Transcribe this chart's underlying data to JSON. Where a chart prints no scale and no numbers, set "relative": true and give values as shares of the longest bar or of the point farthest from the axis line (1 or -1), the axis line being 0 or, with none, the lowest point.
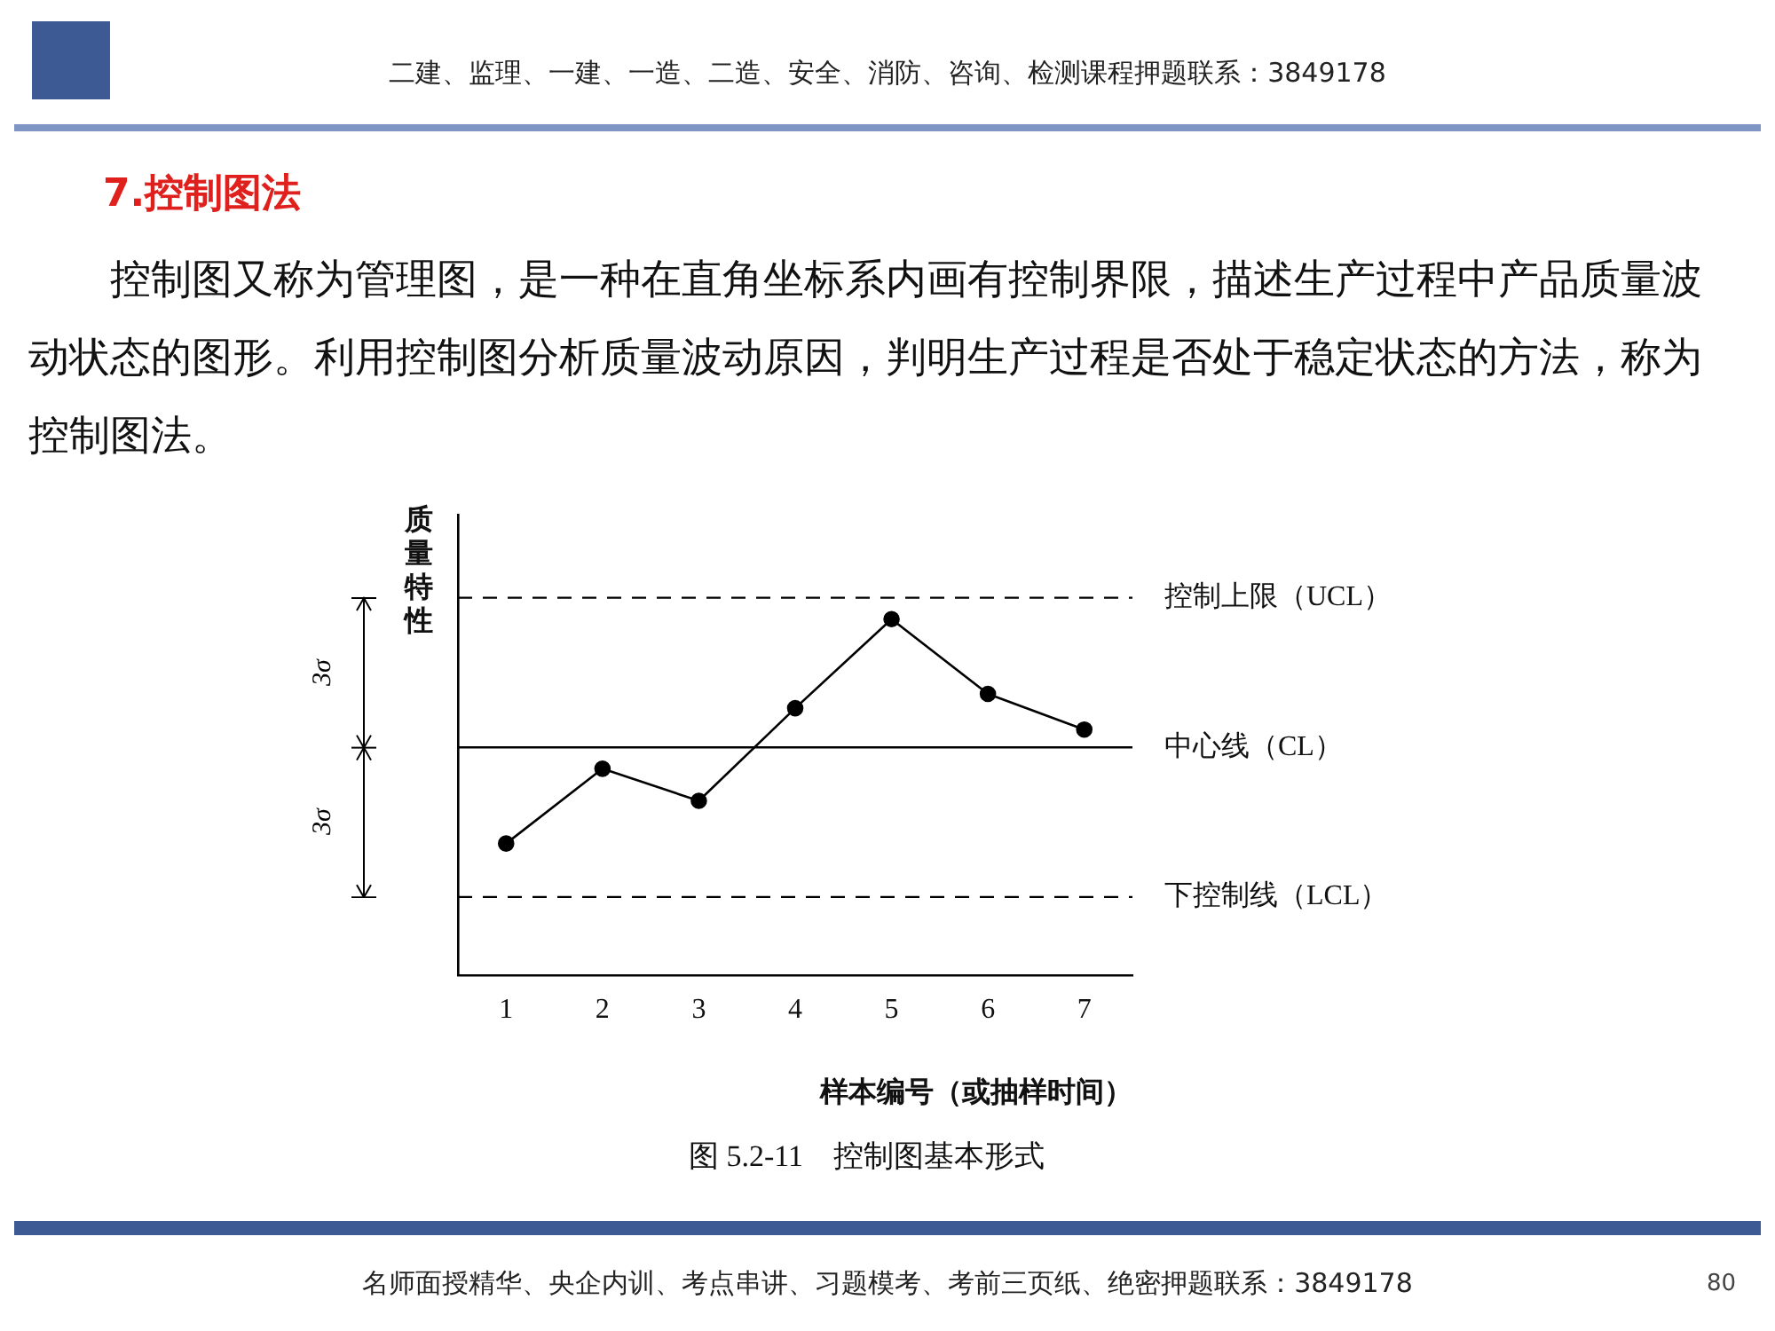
{
  "chart_data": {
    "type": "line",
    "title": "7.控制图法",
    "xlabel": "样本编号（或抽样时间）",
    "ylabel": "质量特性",
    "categories": [
      "1",
      "2",
      "3",
      "4",
      "5",
      "6",
      "7"
    ],
    "series": [
      {
        "color": "#000000",
        "values": [
          0.37,
          0.58,
          0.49,
          0.75,
          1,
          0.79,
          0.69
        ]
      }
    ],
    "relative": true,
    "marker": "circle",
    "line_style": "solid",
    "grid": false,
    "legend": false,
    "ref_lines": [
      {
        "axis": "y",
        "value": 1.06,
        "label": "控制上限（UCL）",
        "line_style": "dashed",
        "color": "#000000"
      },
      {
        "axis": "y",
        "value": 0.64,
        "label": "中心线（CL）",
        "line_style": "solid",
        "color": "#000000"
      },
      {
        "axis": "y",
        "value": 0.22,
        "label": "下控制线（LCL）",
        "line_style": "dashed",
        "color": "#000000"
      }
    ],
    "annotations": [
      "二建、监理、一建、一造、二造、安全、消防、咨询、检测课程押题联系：3849178",
      "控制图又称为管理图，是一种在直角坐标系内画有控制界限，描述生产过程中产品质量波动状态的图形。利用控制图分析质量波动原因，判明生产过程是否处于稳定状态的方法，称为控制图法。",
      "3σ",
      "3σ",
      "图 5.2-11　控制图基本形式",
      "名师面授精华、央企内训、考点串讲、习题模考、考前三页纸、绝密押题联系：3849178",
      "80"
    ]
  }
}
